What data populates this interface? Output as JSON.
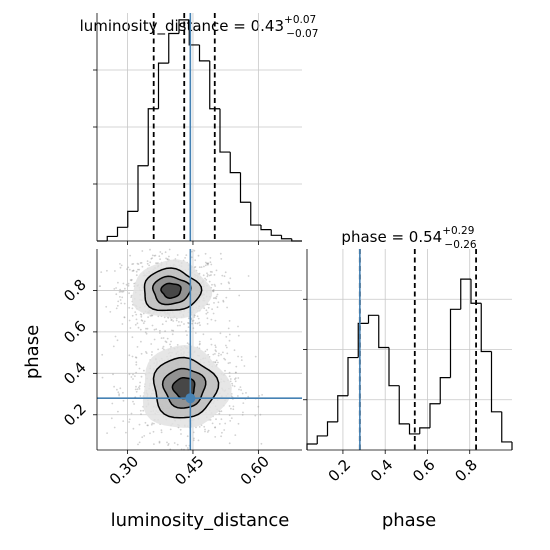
{
  "colors": {
    "truth": "#4682b4",
    "hist": "#000000",
    "grid": "#c8c8c8",
    "scatter": "#9a9a9a"
  },
  "chart_data": [
    {
      "type": "histogram",
      "title": {
        "prefix": "luminosity_distance = 0.43",
        "sup": "+0.07",
        "sub": "−0.07"
      },
      "xlim": [
        0.23,
        0.7
      ],
      "ylim": [
        0,
        1.0
      ],
      "grid": true,
      "truth": 0.444,
      "quantiles": [
        0.36,
        0.43,
        0.5
      ],
      "bins_x": [
        0.23,
        0.2535,
        0.277,
        0.3005,
        0.324,
        0.3475,
        0.371,
        0.3945,
        0.418,
        0.4415,
        0.465,
        0.4885,
        0.512,
        0.5355,
        0.559,
        0.5825,
        0.606,
        0.6295,
        0.653,
        0.6765,
        0.7
      ],
      "counts": [
        0.0,
        0.02,
        0.06,
        0.13,
        0.33,
        0.58,
        0.78,
        0.91,
        0.97,
        0.86,
        0.79,
        0.58,
        0.39,
        0.3,
        0.17,
        0.07,
        0.05,
        0.025,
        0.01,
        0.0
      ]
    },
    {
      "type": "scatter",
      "xlabel": "luminosity_distance",
      "ylabel": "phase",
      "xlim": [
        0.23,
        0.7
      ],
      "ylim": [
        0.03,
        1.0
      ],
      "xticks": [
        {
          "v": 0.3,
          "label": "0.30"
        },
        {
          "v": 0.45,
          "label": "0.45"
        },
        {
          "v": 0.6,
          "label": "0.60"
        }
      ],
      "yticks": [
        {
          "v": 0.2,
          "label": "0.2"
        },
        {
          "v": 0.4,
          "label": "0.4"
        },
        {
          "v": 0.6,
          "label": "0.6"
        },
        {
          "v": 0.8,
          "label": "0.8"
        }
      ],
      "grid": true,
      "truth": {
        "x": 0.444,
        "y": 0.28
      },
      "modes": [
        {
          "cx": 0.4,
          "cy": 0.8,
          "sx": 0.045,
          "sy": 0.07,
          "weight": 1
        },
        {
          "cx": 0.43,
          "cy": 0.33,
          "sx": 0.05,
          "sy": 0.1,
          "weight": 1
        }
      ]
    },
    {
      "type": "histogram",
      "title": {
        "prefix": "phase = 0.54",
        "sup": "+0.29",
        "sub": "−0.26"
      },
      "xlabel": "phase",
      "xlim": [
        0.03,
        1.0
      ],
      "ylim": [
        0,
        1.0
      ],
      "grid": true,
      "truth": 0.28,
      "quantiles": [
        0.28,
        0.54,
        0.83
      ],
      "xticks": [
        {
          "v": 0.2,
          "label": "0.2"
        },
        {
          "v": 0.4,
          "label": "0.4"
        },
        {
          "v": 0.6,
          "label": "0.6"
        },
        {
          "v": 0.8,
          "label": "0.8"
        }
      ],
      "bins_x": [
        0.03,
        0.0785,
        0.127,
        0.1755,
        0.224,
        0.2725,
        0.321,
        0.3695,
        0.418,
        0.4665,
        0.515,
        0.5635,
        0.612,
        0.6605,
        0.709,
        0.7575,
        0.806,
        0.8545,
        0.903,
        0.9515,
        1.0
      ],
      "counts": [
        0.03,
        0.07,
        0.14,
        0.27,
        0.46,
        0.63,
        0.67,
        0.51,
        0.32,
        0.13,
        0.08,
        0.11,
        0.23,
        0.36,
        0.7,
        0.85,
        0.73,
        0.49,
        0.19,
        0.04
      ]
    }
  ]
}
